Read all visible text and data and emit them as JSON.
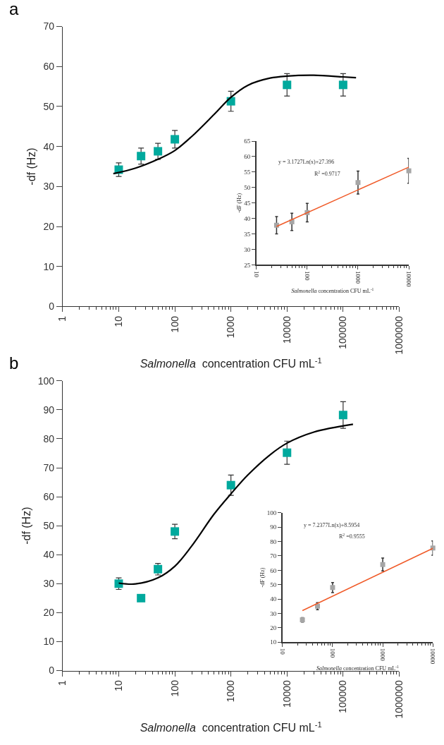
{
  "chart_data": [
    {
      "type": "scatter",
      "title": "a",
      "xlabel": "Salmonella  concentration CFU mL$^{-1}$",
      "ylabel": "-df (Hz)",
      "log": "x",
      "xlim": [
        1,
        1000000
      ],
      "xticks": [
        1,
        10,
        100,
        1000,
        10000,
        100000,
        1000000
      ],
      "ylim": [
        0,
        70
      ],
      "yticks": [
        0,
        10,
        20,
        30,
        40,
        50,
        60,
        70
      ],
      "series": [
        {
          "marker": "square",
          "color": "#00a99d",
          "x": [
            10,
            25,
            50,
            100,
            1000,
            10000,
            100000
          ],
          "values": [
            34.2,
            37.6,
            38.8,
            41.8,
            51.3,
            55.4,
            55.4
          ],
          "errors": [
            1.7,
            2,
            2,
            2.2,
            2.5,
            2.8,
            2.8
          ]
        },
        {
          "type": "line",
          "marker": "none",
          "color": "#000000",
          "x": [
            8,
            20,
            50,
            100,
            200,
            500,
            1000,
            2000,
            5000,
            10000,
            30000,
            100000,
            170000
          ],
          "values": [
            33.2,
            34.6,
            36.8,
            39,
            42.5,
            48,
            52.3,
            55.3,
            57.1,
            57.6,
            57.8,
            57.4,
            57.2
          ]
        }
      ]
    },
    {
      "type": "scatter",
      "xlabel": "Salmonella concentration CFU mL$^{-1}$",
      "ylabel": "-dF (Hz)",
      "log": "x",
      "xlim": [
        10,
        10000
      ],
      "xticks": [
        10,
        100,
        1000,
        10000
      ],
      "ylim": [
        25,
        65
      ],
      "yticks": [
        25,
        30,
        35,
        40,
        45,
        50,
        55,
        60,
        65
      ],
      "annotations": [
        "y = 3.1727Ln(x)+27.396",
        "R$^{2}$ =0.9717"
      ],
      "series": [
        {
          "marker": "square",
          "color": "#a6a6a6",
          "x": [
            25,
            50,
            100,
            1000,
            10000
          ],
          "values": [
            37.8,
            38.9,
            41.9,
            51.6,
            55.4
          ],
          "errors": [
            2.8,
            2.8,
            3,
            3.7,
            4
          ]
        },
        {
          "type": "line",
          "marker": "none",
          "color": "#f05a28",
          "x": [
            25,
            10000
          ],
          "values": [
            37.4,
            56.6
          ]
        }
      ]
    },
    {
      "type": "scatter",
      "title": "b",
      "xlabel": "Salmonella  concentration CFU mL$^{-1}$",
      "ylabel": "-df (Hz)",
      "log": "x",
      "xlim": [
        1,
        1000000
      ],
      "xticks": [
        1,
        10,
        100,
        1000,
        10000,
        100000,
        1000000
      ],
      "ylim": [
        0,
        100
      ],
      "yticks": [
        0,
        10,
        20,
        30,
        40,
        50,
        60,
        70,
        80,
        90,
        100
      ],
      "series": [
        {
          "marker": "square",
          "color": "#00a99d",
          "x": [
            10,
            25,
            50,
            100,
            1000,
            10000,
            100000
          ],
          "values": [
            30,
            25,
            35,
            48,
            64,
            75.2,
            88.2
          ],
          "errors": [
            2,
            null,
            2,
            2.5,
            3.5,
            4,
            4.6
          ]
        },
        {
          "type": "line",
          "marker": "none",
          "color": "#000000",
          "x": [
            10,
            20,
            50,
            100,
            200,
            500,
            1000,
            2000,
            5000,
            10000,
            30000,
            150000
          ],
          "values": [
            30.2,
            29.9,
            32,
            36,
            43,
            54,
            61,
            67.5,
            74.5,
            78.5,
            82.3,
            85
          ]
        }
      ]
    },
    {
      "type": "scatter",
      "xlabel": "Salmonella concentration CFU mL$^{-1}$",
      "ylabel": "-dF (Hz)",
      "log": "x",
      "xlim": [
        10,
        10000
      ],
      "xticks": [
        10,
        100,
        1000,
        10000
      ],
      "ylim": [
        10,
        100
      ],
      "yticks": [
        10,
        20,
        30,
        40,
        50,
        60,
        70,
        80,
        90,
        100
      ],
      "annotations": [
        "y = 7.2377Ln(x)+8.5954",
        "R$^{2}$ =0.9555"
      ],
      "series": [
        {
          "marker": "square",
          "color": "#a6a6a6",
          "x": [
            25,
            50,
            100,
            1000,
            10000
          ],
          "values": [
            25.5,
            35,
            48,
            64,
            75.5
          ],
          "errors": [
            1.5,
            2.5,
            3.5,
            4.5,
            5
          ]
        },
        {
          "type": "line",
          "marker": "none",
          "color": "#f05a28",
          "x": [
            25,
            10000
          ],
          "values": [
            31.9,
            75.3
          ]
        }
      ]
    }
  ]
}
